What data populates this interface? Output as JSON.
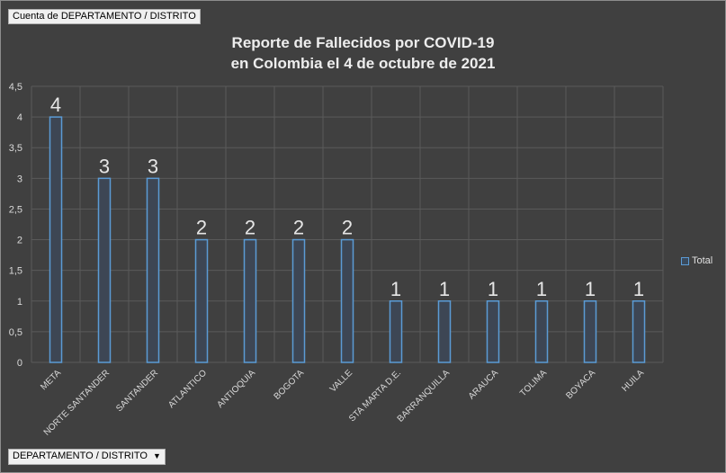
{
  "pivot": {
    "values_field": "Cuenta de DEPARTAMENTO / DISTRITO",
    "axis_field": "DEPARTAMENTO / DISTRITO",
    "axis_dropdown_icon": "dropdown-arrow-icon"
  },
  "colors": {
    "background": "#404040",
    "bar_stroke": "#5b9bd5",
    "bar_fill": "#3d4654",
    "grid": "#5a5a5a",
    "text": "#d9d9d9"
  },
  "chart_data": {
    "type": "bar",
    "title": "Reporte de Fallecidos por COVID-19",
    "subtitle": "en Colombia el 4 de octubre de 2021",
    "xlabel": "",
    "ylabel": "",
    "categories": [
      "META",
      "NORTE SANTANDER",
      "SANTANDER",
      "ATLANTICO",
      "ANTIOQUIA",
      "BOGOTA",
      "VALLE",
      "STA MARTA D.E.",
      "BARRANQUILLA",
      "ARAUCA",
      "TOLIMA",
      "BOYACA",
      "HUILA"
    ],
    "series": [
      {
        "name": "Total",
        "values": [
          4,
          3,
          3,
          2,
          2,
          2,
          2,
          1,
          1,
          1,
          1,
          1,
          1
        ]
      }
    ],
    "data_labels": [
      "4",
      "3",
      "3",
      "2",
      "2",
      "2",
      "2",
      "1",
      "1",
      "1",
      "1",
      "1",
      "1"
    ],
    "ylim": [
      0,
      4.5
    ],
    "yticks": [
      "0",
      "0,5",
      "1",
      "1,5",
      "2",
      "2,5",
      "3",
      "3,5",
      "4",
      "4,5"
    ],
    "grid": true,
    "legend": "right"
  }
}
